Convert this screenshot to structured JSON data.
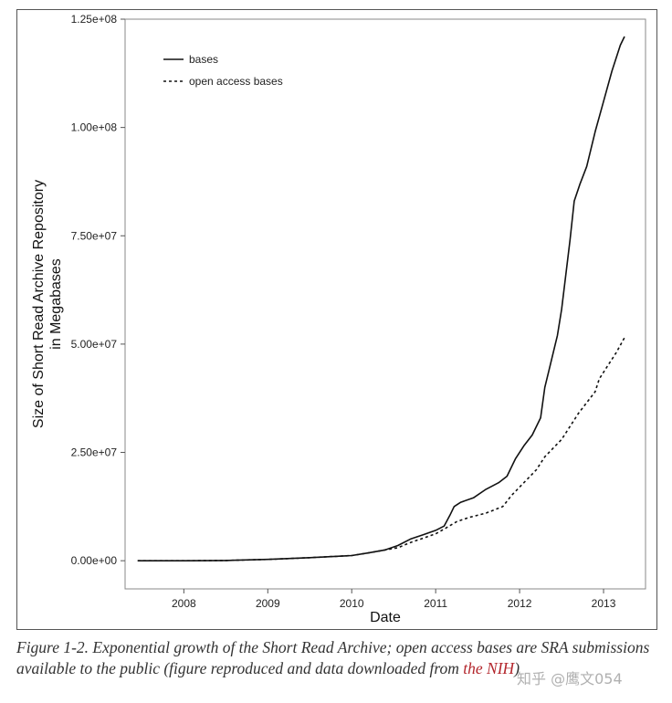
{
  "chart_data": {
    "type": "line",
    "xlabel": "Date",
    "ylabel_line1": "Size of Short Read Archive Repository",
    "ylabel_line2": "in Megabases",
    "xlim": [
      2007.3,
      2013.5
    ],
    "ylim": [
      -6500000,
      125000000
    ],
    "x_ticks": [
      {
        "value": 2008,
        "label": "2008"
      },
      {
        "value": 2009,
        "label": "2009"
      },
      {
        "value": 2010,
        "label": "2010"
      },
      {
        "value": 2011,
        "label": "2011"
      },
      {
        "value": 2012,
        "label": "2012"
      },
      {
        "value": 2013,
        "label": "2013"
      }
    ],
    "y_ticks": [
      {
        "value": 0,
        "label": "0.00e+00"
      },
      {
        "value": 25000000,
        "label": "2.50e+07"
      },
      {
        "value": 50000000,
        "label": "5.00e+07"
      },
      {
        "value": 75000000,
        "label": "7.50e+07"
      },
      {
        "value": 100000000,
        "label": "1.00e+08"
      },
      {
        "value": 125000000,
        "label": "1.25e+08"
      }
    ],
    "grid": false,
    "legend_position": "top-left",
    "series": [
      {
        "name": "bases",
        "style": "solid",
        "x": [
          2007.45,
          2008.0,
          2008.5,
          2009.0,
          2009.5,
          2010.0,
          2010.2,
          2010.4,
          2010.55,
          2010.7,
          2010.85,
          2011.0,
          2011.1,
          2011.17,
          2011.22,
          2011.3,
          2011.45,
          2011.6,
          2011.75,
          2011.85,
          2011.95,
          2012.05,
          2012.15,
          2012.25,
          2012.3,
          2012.35,
          2012.45,
          2012.5,
          2012.55,
          2012.6,
          2012.65,
          2012.72,
          2012.8,
          2012.9,
          2013.0,
          2013.1,
          2013.2,
          2013.25
        ],
        "y": [
          0,
          0,
          50000,
          300000,
          700000,
          1200000,
          1800000,
          2500000,
          3500000,
          5000000,
          6000000,
          7000000,
          8000000,
          10500000,
          12500000,
          13500000,
          14500000,
          16500000,
          18000000,
          19500000,
          23500000,
          26500000,
          29000000,
          33000000,
          40000000,
          44000000,
          52000000,
          58000000,
          66000000,
          74000000,
          83000000,
          87000000,
          91000000,
          99000000,
          106000000,
          113000000,
          119000000,
          121000000
        ]
      },
      {
        "name": "open access bases",
        "style": "dashed",
        "x": [
          2007.45,
          2008.0,
          2008.5,
          2009.0,
          2009.5,
          2010.0,
          2010.2,
          2010.4,
          2010.55,
          2010.7,
          2010.85,
          2011.0,
          2011.1,
          2011.25,
          2011.4,
          2011.6,
          2011.8,
          2011.9,
          2012.0,
          2012.1,
          2012.2,
          2012.3,
          2012.4,
          2012.5,
          2012.6,
          2012.7,
          2012.8,
          2012.9,
          2012.95,
          2013.05,
          2013.15,
          2013.25
        ],
        "y": [
          0,
          0,
          50000,
          300000,
          700000,
          1200000,
          1800000,
          2500000,
          3000000,
          4200000,
          5200000,
          6200000,
          7300000,
          9000000,
          10000000,
          11000000,
          12500000,
          15000000,
          17000000,
          19000000,
          21000000,
          24000000,
          26000000,
          28000000,
          31000000,
          34000000,
          36500000,
          39000000,
          42000000,
          45000000,
          48000000,
          51500000
        ]
      }
    ]
  },
  "caption": {
    "text_before_link": "Figure 1-2. Exponential growth of the Short Read Archive; open access bases are SRA submissions available to the public (figure reproduced and data downloaded from ",
    "link_text": "the NIH",
    "text_after_link": ")"
  },
  "watermark": "知乎 @鹰文054"
}
